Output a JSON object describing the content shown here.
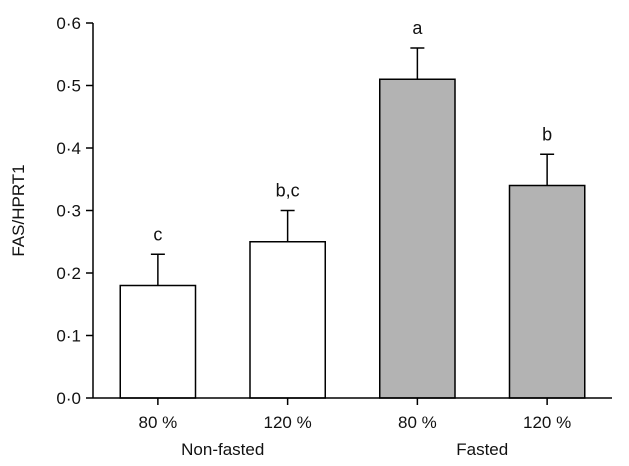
{
  "chart_data": {
    "type": "bar",
    "ylabel": "FAS/HPRT1",
    "ylim": [
      0,
      0.6
    ],
    "yticks": [
      0,
      0.1,
      0.2,
      0.3,
      0.4,
      0.5,
      0.6
    ],
    "ytick_labels": [
      "0·0",
      "0·1",
      "0·2",
      "0·3",
      "0·4",
      "0·5",
      "0·6"
    ],
    "categories": [
      "80 %",
      "120 %",
      "80 %",
      "120 %"
    ],
    "groups": [
      {
        "label": "Non-fasted",
        "indices": [
          0,
          1
        ]
      },
      {
        "label": "Fasted",
        "indices": [
          2,
          3
        ]
      }
    ],
    "values": [
      0.18,
      0.25,
      0.51,
      0.34
    ],
    "errors": [
      0.05,
      0.05,
      0.05,
      0.05
    ],
    "significance_labels": [
      "c",
      "b,c",
      "a",
      "b"
    ],
    "bar_colors": [
      "#ffffff",
      "#ffffff",
      "#b3b3b3",
      "#b3b3b3"
    ],
    "grid": false
  }
}
